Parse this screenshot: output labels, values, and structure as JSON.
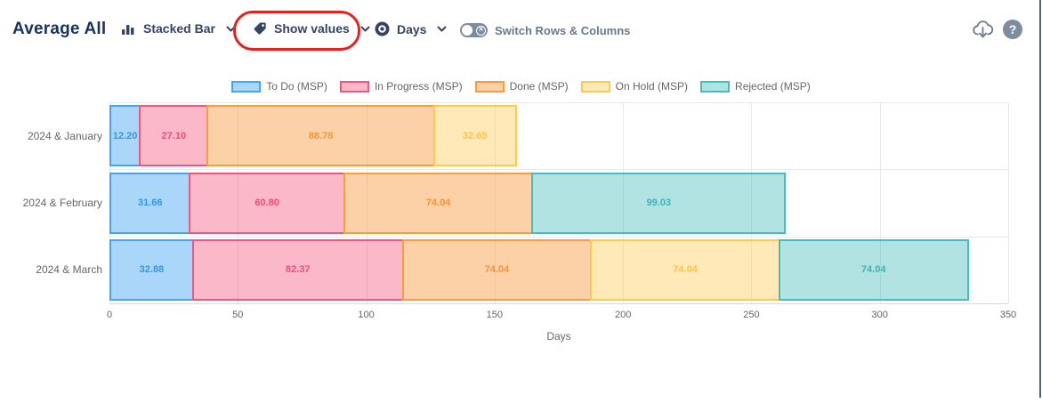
{
  "header": {
    "title": "Average All",
    "chart_type_label": "Stacked Bar",
    "show_values_label": "Show values",
    "unit_label": "Days",
    "switch_label": "Switch Rows & Columns",
    "toggle_state": "off"
  },
  "annotation": {
    "shape": "red-oval",
    "around": "show-values-dropdown",
    "color": "#e8211d"
  },
  "chart_data": {
    "type": "bar",
    "orientation": "horizontal",
    "stacked": true,
    "title": "",
    "categories": [
      "2024 & January",
      "2024 & February",
      "2024 & March"
    ],
    "series": [
      {
        "name": "To Do (MSP)",
        "values": [
          12.2,
          31.66,
          32.88
        ],
        "border": "#42a5f5",
        "fill": "rgba(66,165,245,0.45)",
        "label_color": "#2f97ea"
      },
      {
        "name": "In Progress (MSP)",
        "values": [
          27.1,
          60.8,
          82.37
        ],
        "border": "#f2557f",
        "fill": "rgba(242,85,127,0.42)",
        "label_color": "#f14c78"
      },
      {
        "name": "Done (MSP)",
        "values": [
          88.78,
          74.04,
          74.04
        ],
        "border": "#fb9a3f",
        "fill": "rgba(251,154,63,0.45)",
        "label_color": "#f99334"
      },
      {
        "name": "On Hold (MSP)",
        "values": [
          32.65,
          null,
          74.04
        ],
        "border": "#ffc94d",
        "fill": "rgba(255,201,77,0.40)",
        "label_color": "#fdc53e"
      },
      {
        "name": "Rejected (MSP)",
        "values": [
          null,
          99.03,
          74.04
        ],
        "border": "#45bcbd",
        "fill": "rgba(69,188,189,0.42)",
        "label_color": "#3cb4b5"
      }
    ],
    "xlabel": "Days",
    "xlim": [
      0,
      350
    ],
    "xticks": [
      0,
      50,
      100,
      150,
      200,
      250,
      300,
      350
    ],
    "value_decimals": 2,
    "legend_position": "top",
    "grid": true
  }
}
